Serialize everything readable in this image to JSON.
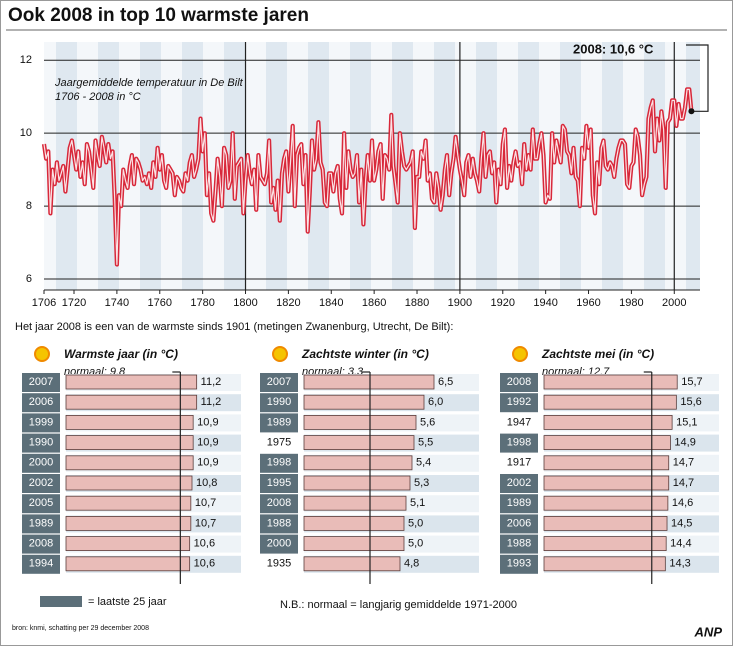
{
  "title": "Ook 2008 in top 10 warmste jaren",
  "chart_data": [
    {
      "type": "line",
      "subtitle": [
        "Jaargemiddelde temperatuur in De Bilt",
        "1706 - 2008 in °C"
      ],
      "annotation": "2008: 10,6 °C",
      "color": "#d8283a",
      "x": [
        1706,
        1707,
        1708,
        1709,
        1710,
        1711,
        1712,
        1713,
        1714,
        1715,
        1716,
        1717,
        1718,
        1719,
        1720,
        1721,
        1722,
        1723,
        1724,
        1725,
        1726,
        1727,
        1728,
        1729,
        1730,
        1731,
        1732,
        1733,
        1734,
        1735,
        1736,
        1737,
        1738,
        1739,
        1740,
        1741,
        1742,
        1743,
        1744,
        1745,
        1746,
        1747,
        1748,
        1749,
        1750,
        1751,
        1752,
        1753,
        1754,
        1755,
        1756,
        1757,
        1758,
        1759,
        1760,
        1761,
        1762,
        1763,
        1764,
        1765,
        1766,
        1767,
        1768,
        1769,
        1770,
        1771,
        1772,
        1773,
        1774,
        1775,
        1776,
        1777,
        1778,
        1779,
        1780,
        1781,
        1782,
        1783,
        1784,
        1785,
        1786,
        1787,
        1788,
        1789,
        1790,
        1791,
        1792,
        1793,
        1794,
        1795,
        1796,
        1797,
        1798,
        1799,
        1800,
        1801,
        1802,
        1803,
        1804,
        1805,
        1806,
        1807,
        1808,
        1809,
        1810,
        1811,
        1812,
        1813,
        1814,
        1815,
        1816,
        1817,
        1818,
        1819,
        1820,
        1821,
        1822,
        1823,
        1824,
        1825,
        1826,
        1827,
        1828,
        1829,
        1830,
        1831,
        1832,
        1833,
        1834,
        1835,
        1836,
        1837,
        1838,
        1839,
        1840,
        1841,
        1842,
        1843,
        1844,
        1845,
        1846,
        1847,
        1848,
        1849,
        1850,
        1851,
        1852,
        1853,
        1854,
        1855,
        1856,
        1857,
        1858,
        1859,
        1860,
        1861,
        1862,
        1863,
        1864,
        1865,
        1866,
        1867,
        1868,
        1869,
        1870,
        1871,
        1872,
        1873,
        1874,
        1875,
        1876,
        1877,
        1878,
        1879,
        1880,
        1881,
        1882,
        1883,
        1884,
        1885,
        1886,
        1887,
        1888,
        1889,
        1890,
        1891,
        1892,
        1893,
        1894,
        1895,
        1896,
        1897,
        1898,
        1899,
        1900,
        1901,
        1902,
        1903,
        1904,
        1905,
        1906,
        1907,
        1908,
        1909,
        1910,
        1911,
        1912,
        1913,
        1914,
        1915,
        1916,
        1917,
        1918,
        1919,
        1920,
        1921,
        1922,
        1923,
        1924,
        1925,
        1926,
        1927,
        1928,
        1929,
        1930,
        1931,
        1932,
        1933,
        1934,
        1935,
        1936,
        1937,
        1938,
        1939,
        1940,
        1941,
        1942,
        1943,
        1944,
        1945,
        1946,
        1947,
        1948,
        1949,
        1950,
        1951,
        1952,
        1953,
        1954,
        1955,
        1956,
        1957,
        1958,
        1959,
        1960,
        1961,
        1962,
        1963,
        1964,
        1965,
        1966,
        1967,
        1968,
        1969,
        1970,
        1971,
        1972,
        1973,
        1974,
        1975,
        1976,
        1977,
        1978,
        1979,
        1980,
        1981,
        1982,
        1983,
        1984,
        1985,
        1986,
        1987,
        1988,
        1989,
        1990,
        1991,
        1992,
        1993,
        1994,
        1995,
        1996,
        1997,
        1998,
        1999,
        2000,
        2001,
        2002,
        2003,
        2004,
        2005,
        2006,
        2007,
        2008
      ],
      "values": [
        9.7,
        9.3,
        9.5,
        7.8,
        9.0,
        8.6,
        9.2,
        8.7,
        8.9,
        9.1,
        8.4,
        9.0,
        9.6,
        9.8,
        9.4,
        9.0,
        9.5,
        8.8,
        9.2,
        8.6,
        9.7,
        9.5,
        9.0,
        8.5,
        9.8,
        9.4,
        9.1,
        9.9,
        9.6,
        9.2,
        9.7,
        9.3,
        9.5,
        8.2,
        6.4,
        8.3,
        8.0,
        9.0,
        8.7,
        8.5,
        9.1,
        9.4,
        8.6,
        9.3,
        9.2,
        9.0,
        8.7,
        8.8,
        8.6,
        8.9,
        8.5,
        9.2,
        8.8,
        9.6,
        9.0,
        9.4,
        8.7,
        8.5,
        9.1,
        9.0,
        8.9,
        8.3,
        8.8,
        8.7,
        8.5,
        8.4,
        8.9,
        8.7,
        9.2,
        9.4,
        8.8,
        9.0,
        9.3,
        10.4,
        9.5,
        10.0,
        8.3,
        8.9,
        7.8,
        7.6,
        8.4,
        9.3,
        8.8,
        8.0,
        9.6,
        9.4,
        8.5,
        8.7,
        10.0,
        8.2,
        9.1,
        9.2,
        9.3,
        7.8,
        8.7,
        9.4,
        8.9,
        8.6,
        9.0,
        7.9,
        9.4,
        8.8,
        8.7,
        8.6,
        8.9,
        9.8,
        8.1,
        8.5,
        7.9,
        8.7,
        7.6,
        8.9,
        9.3,
        9.5,
        8.4,
        9.2,
        10.2,
        8.0,
        9.4,
        9.6,
        9.7,
        8.6,
        9.4,
        7.3,
        8.4,
        9.8,
        9.0,
        9.3,
        10.3,
        9.2,
        9.0,
        8.1,
        8.0,
        8.9,
        8.9,
        8.4,
        8.9,
        9.1,
        8.2,
        7.8,
        10.0,
        8.5,
        9.5,
        9.0,
        8.8,
        8.9,
        9.4,
        8.1,
        9.0,
        7.5,
        8.7,
        9.4,
        8.7,
        9.8,
        8.7,
        9.0,
        9.5,
        9.7,
        8.2,
        9.4,
        9.3,
        9.0,
        10.5,
        9.1,
        8.6,
        8.1,
        10.0,
        9.5,
        9.1,
        9.0,
        9.1,
        9.2,
        9.5,
        7.4,
        8.8,
        8.8,
        9.5,
        9.3,
        9.8,
        8.7,
        8.9,
        8.2,
        8.1,
        8.9,
        8.5,
        7.9,
        8.3,
        9.0,
        9.4,
        8.3,
        8.9,
        9.3,
        9.9,
        9.4,
        9.0,
        8.7,
        8.3,
        9.2,
        9.4,
        8.8,
        9.3,
        8.9,
        8.7,
        8.4,
        9.3,
        10.0,
        8.8,
        9.4,
        9.5,
        8.9,
        9.2,
        8.1,
        9.0,
        8.6,
        9.7,
        10.1,
        8.5,
        9.1,
        8.7,
        9.2,
        9.5,
        9.1,
        9.2,
        8.6,
        9.7,
        9.0,
        9.4,
        9.0,
        10.1,
        9.3,
        9.3,
        9.7,
        10.0,
        9.4,
        8.1,
        8.3,
        8.2,
        10.0,
        9.2,
        9.8,
        9.5,
        9.2,
        10.2,
        10.1,
        9.5,
        9.4,
        8.9,
        9.6,
        8.8,
        8.7,
        8.0,
        9.6,
        9.3,
        10.2,
        9.6,
        10.1,
        8.3,
        7.8,
        9.2,
        8.6,
        9.6,
        9.8,
        9.1,
        9.0,
        9.2,
        9.1,
        8.8,
        9.3,
        9.6,
        9.8,
        9.8,
        9.7,
        8.6,
        8.5,
        9.1,
        9.2,
        10.1,
        9.9,
        9.4,
        8.3,
        8.6,
        8.8,
        10.4,
        10.7,
        10.9,
        9.5,
        10.4,
        9.8,
        10.6,
        10.1,
        8.5,
        10.3,
        10.4,
        10.9,
        10.9,
        10.2,
        10.8,
        10.4,
        10.4,
        10.7,
        11.2,
        11.2,
        10.6
      ],
      "xlim": [
        1706,
        2012
      ],
      "xticks": [
        1706,
        1720,
        1740,
        1760,
        1780,
        1800,
        1820,
        1840,
        1860,
        1880,
        1900,
        1920,
        1940,
        1960,
        1980,
        2000
      ],
      "major_xgrid": [
        1800,
        1900,
        2000
      ],
      "ylim": [
        5.7,
        12.5
      ],
      "yticks": [
        6,
        8,
        10,
        12
      ],
      "grid": true
    },
    {
      "type": "hbar",
      "title": "Warmste jaar (in °C)",
      "normal": {
        "value": 9.8,
        "label": "normaal: 9,8"
      },
      "categories": [
        "2007",
        "2006",
        "1999",
        "1990",
        "2000",
        "2002",
        "2005",
        "1989",
        "2008",
        "1994"
      ],
      "values": [
        11.2,
        11.2,
        10.9,
        10.9,
        10.9,
        10.8,
        10.7,
        10.7,
        10.6,
        10.6
      ],
      "value_labels": [
        "11,2",
        "11,2",
        "10,9",
        "10,9",
        "10,9",
        "10,8",
        "10,7",
        "10,7",
        "10,6",
        "10,6"
      ],
      "highlight": [
        true,
        true,
        true,
        true,
        true,
        true,
        true,
        true,
        true,
        true
      ],
      "xlim": [
        0,
        12
      ],
      "color": "#e9bcb8"
    },
    {
      "type": "hbar",
      "title": "Zachtste winter (in °C)",
      "normal": {
        "value": 3.3,
        "label": "normaal: 3,3"
      },
      "categories": [
        "2007",
        "1990",
        "1989",
        "1975",
        "1998",
        "1995",
        "2008",
        "1988",
        "2000",
        "1935"
      ],
      "values": [
        6.5,
        6.0,
        5.6,
        5.5,
        5.4,
        5.3,
        5.1,
        5.0,
        5.0,
        4.8
      ],
      "value_labels": [
        "6,5",
        "6,0",
        "5,6",
        "5,5",
        "5,4",
        "5,3",
        "5,1",
        "5,0",
        "5,0",
        "4,8"
      ],
      "highlight": [
        true,
        true,
        true,
        false,
        true,
        true,
        true,
        true,
        true,
        false
      ],
      "xlim": [
        0,
        7
      ],
      "color": "#e9bcb8"
    },
    {
      "type": "hbar",
      "title": "Zachtste mei (in °C)",
      "normal": {
        "value": 12.7,
        "label": "normaal: 12,7"
      },
      "categories": [
        "2008",
        "1992",
        "1947",
        "1998",
        "1917",
        "2002",
        "1989",
        "2006",
        "1988",
        "1993"
      ],
      "values": [
        15.7,
        15.6,
        15.1,
        14.9,
        14.7,
        14.7,
        14.6,
        14.5,
        14.4,
        14.3
      ],
      "value_labels": [
        "15,7",
        "15,6",
        "15,1",
        "14,9",
        "14,7",
        "14,7",
        "14,6",
        "14,5",
        "14,4",
        "14,3"
      ],
      "highlight": [
        true,
        true,
        false,
        true,
        false,
        true,
        true,
        true,
        true,
        true
      ],
      "xlim": [
        0,
        16.5
      ],
      "color": "#e9bcb8"
    }
  ],
  "intro": "Het jaar 2008 is een van de warmste sinds 1901 (metingen Zwanenburg, Utrecht, De Bilt):",
  "legend_label": "= laatste 25 jaar",
  "note": "N.B.: normaal = langjarig gemiddelde 1971-2000",
  "source": "bron: knmi, schatting per 29 december 2008",
  "logo": "ANP"
}
